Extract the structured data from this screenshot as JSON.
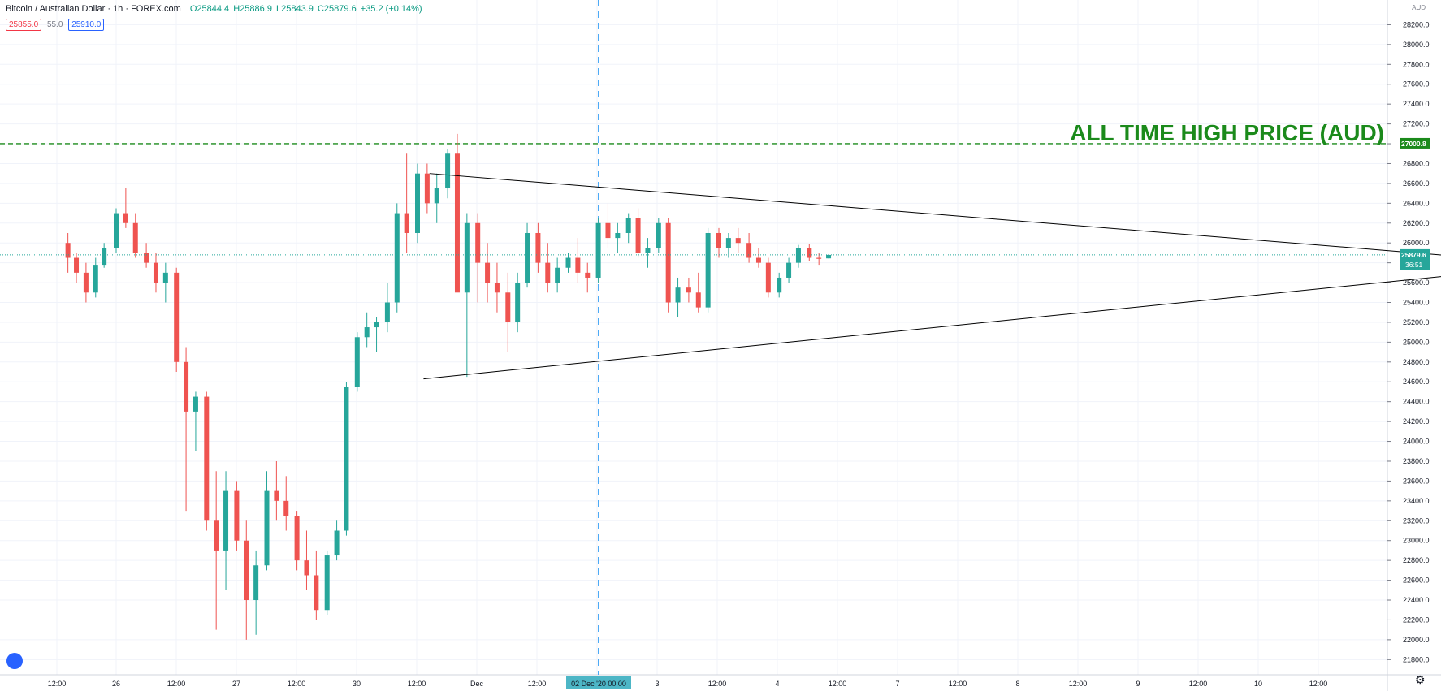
{
  "header": {
    "symbol": "Bitcoin / Australian Dollar · 1h · FOREX.com",
    "open": "O25844.4",
    "high": "H25886.9",
    "low": "L25843.9",
    "close": "C25879.6",
    "change": "+35.2 (+0.14%)",
    "bid": "25855.0",
    "spread": "55.0",
    "ask": "25910.0"
  },
  "axis": {
    "currency": "AUD",
    "price_ticks": [
      "28200.0",
      "28000.0",
      "27800.0",
      "27600.0",
      "27400.0",
      "27200.0",
      "27000.0",
      "26800.0",
      "26600.0",
      "26400.0",
      "26200.0",
      "26000.0",
      "25800.0",
      "25600.0",
      "25400.0",
      "25200.0",
      "25000.0",
      "24800.0",
      "24600.0",
      "24400.0",
      "24200.0",
      "24000.0",
      "23800.0",
      "23600.0",
      "23400.0",
      "23200.0",
      "23000.0",
      "22800.0",
      "22600.0",
      "22400.0",
      "22200.0",
      "22000.0",
      "21800.0"
    ],
    "time_ticks": [
      "12:00",
      "26",
      "12:00",
      "27",
      "12:00",
      "30",
      "12:00",
      "Dec",
      "12:00",
      "12:00",
      "3",
      "12:00",
      "4",
      "12:00",
      "7",
      "12:00",
      "8",
      "12:00",
      "9",
      "12:00",
      "10",
      "12:00"
    ],
    "crosshair_label": "02 Dec '20   00:00",
    "ath_label": "27000.8",
    "last_price_label": "25879.6",
    "countdown_label": "36:51"
  },
  "annotation": {
    "ath_text": "ALL TIME HIGH PRICE (AUD)"
  },
  "colors": {
    "up": "#26a69a",
    "down": "#ef5350",
    "ath": "#1b8a1b",
    "crosshair": "#2196f3",
    "grid": "#f0f3fa",
    "trendline": "#000000"
  },
  "chart_data": {
    "type": "candlestick",
    "y_unit": "AUD",
    "ylim": [
      21700,
      28400
    ],
    "ath_price": 27000.8,
    "last_price": 25879.6,
    "triangle": {
      "upper": [
        [
          2.6,
          26700
        ],
        [
          11.8,
          25800
        ]
      ],
      "lower": [
        [
          2.55,
          24630
        ],
        [
          11.8,
          25760
        ]
      ]
    },
    "crosshair_x": 3.0,
    "grid": true,
    "candles_approx": [
      [
        -0.4,
        26000,
        26100,
        25700,
        25850
      ],
      [
        -0.33,
        25850,
        25900,
        25600,
        25700
      ],
      [
        -0.25,
        25700,
        25800,
        25400,
        25500
      ],
      [
        -0.17,
        25500,
        25850,
        25450,
        25780
      ],
      [
        -0.1,
        25780,
        26000,
        25750,
        25950
      ],
      [
        0.0,
        25950,
        26350,
        25900,
        26300
      ],
      [
        0.08,
        26300,
        26550,
        26150,
        26200
      ],
      [
        0.16,
        26200,
        26300,
        25850,
        25900
      ],
      [
        0.25,
        25900,
        26000,
        25750,
        25800
      ],
      [
        0.33,
        25800,
        25900,
        25500,
        25600
      ],
      [
        0.41,
        25600,
        25800,
        25400,
        25700
      ],
      [
        0.5,
        25700,
        25750,
        24700,
        24800
      ],
      [
        0.58,
        24800,
        24950,
        23300,
        24300
      ],
      [
        0.66,
        24300,
        24500,
        23900,
        24450
      ],
      [
        0.75,
        24450,
        24500,
        23100,
        23200
      ],
      [
        0.83,
        23200,
        23700,
        22100,
        22900
      ],
      [
        0.91,
        22900,
        23700,
        22500,
        23500
      ],
      [
        1.0,
        23500,
        23600,
        22900,
        23000
      ],
      [
        1.08,
        23000,
        23200,
        22000,
        22400
      ],
      [
        1.16,
        22400,
        22900,
        22050,
        22750
      ],
      [
        1.25,
        22750,
        23700,
        22700,
        23500
      ],
      [
        1.33,
        23500,
        23800,
        23200,
        23400
      ],
      [
        1.41,
        23400,
        23650,
        23100,
        23250
      ],
      [
        1.5,
        23250,
        23300,
        22700,
        22800
      ],
      [
        1.58,
        22800,
        23100,
        22500,
        22650
      ],
      [
        1.66,
        22650,
        22900,
        22200,
        22300
      ],
      [
        1.75,
        22300,
        22900,
        22250,
        22850
      ],
      [
        1.83,
        22850,
        23200,
        22800,
        23100
      ],
      [
        1.91,
        23100,
        24600,
        23050,
        24550
      ],
      [
        2.0,
        24550,
        25100,
        24500,
        25050
      ],
      [
        2.08,
        25050,
        25300,
        24950,
        25150
      ],
      [
        2.16,
        25150,
        25250,
        24900,
        25200
      ],
      [
        2.25,
        25200,
        25600,
        25100,
        25400
      ],
      [
        2.33,
        25400,
        26400,
        25300,
        26300
      ],
      [
        2.41,
        26300,
        26900,
        25900,
        26100
      ],
      [
        2.5,
        26100,
        26800,
        26000,
        26700
      ],
      [
        2.58,
        26700,
        26800,
        26300,
        26400
      ],
      [
        2.66,
        26400,
        26700,
        26200,
        26550
      ],
      [
        2.75,
        26550,
        26950,
        26450,
        26900
      ],
      [
        2.83,
        26900,
        27100,
        25600,
        25500
      ],
      [
        2.91,
        25500,
        26300,
        24650,
        26200
      ],
      [
        3.0,
        26200,
        26300,
        25400,
        25800
      ],
      [
        3.08,
        25800,
        26000,
        25400,
        25600
      ],
      [
        3.16,
        25600,
        25800,
        25300,
        25500
      ],
      [
        3.25,
        25500,
        25700,
        24900,
        25200
      ],
      [
        3.33,
        25200,
        25700,
        25100,
        25600
      ],
      [
        3.41,
        25600,
        26200,
        25550,
        26100
      ],
      [
        3.5,
        26100,
        26200,
        25700,
        25800
      ],
      [
        3.58,
        25800,
        26000,
        25500,
        25600
      ],
      [
        3.66,
        25600,
        25850,
        25500,
        25750
      ],
      [
        3.75,
        25750,
        25900,
        25700,
        25850
      ],
      [
        3.83,
        25850,
        26050,
        25600,
        25700
      ],
      [
        3.91,
        25700,
        25800,
        25500,
        25650
      ],
      [
        4.0,
        25650,
        26250,
        25600,
        26200
      ],
      [
        4.08,
        26200,
        26400,
        25950,
        26050
      ],
      [
        4.16,
        26050,
        26200,
        25900,
        26100
      ],
      [
        4.25,
        26100,
        26300,
        26000,
        26250
      ],
      [
        4.33,
        26250,
        26350,
        25850,
        25900
      ],
      [
        4.41,
        25900,
        26050,
        25750,
        25950
      ],
      [
        4.5,
        25950,
        26250,
        25900,
        26200
      ],
      [
        4.58,
        26200,
        26250,
        25300,
        25400
      ],
      [
        4.66,
        25400,
        25650,
        25250,
        25550
      ],
      [
        4.75,
        25550,
        25650,
        25400,
        25500
      ],
      [
        4.83,
        25500,
        25700,
        25300,
        25350
      ],
      [
        4.91,
        25350,
        26150,
        25300,
        26100
      ],
      [
        5.0,
        26100,
        26150,
        25850,
        25950
      ],
      [
        5.08,
        25950,
        26100,
        25850,
        26050
      ],
      [
        5.16,
        26050,
        26150,
        25900,
        26000
      ],
      [
        5.25,
        26000,
        26100,
        25800,
        25850
      ],
      [
        5.33,
        25850,
        25950,
        25750,
        25800
      ],
      [
        5.41,
        25800,
        25850,
        25450,
        25500
      ],
      [
        5.5,
        25500,
        25700,
        25450,
        25650
      ],
      [
        5.58,
        25650,
        25850,
        25600,
        25800
      ],
      [
        5.66,
        25800,
        25980,
        25750,
        25950
      ],
      [
        5.75,
        25950,
        25990,
        25820,
        25850
      ],
      [
        5.83,
        25850,
        25900,
        25780,
        25840
      ],
      [
        5.91,
        25844.4,
        25886.9,
        25843.9,
        25879.6
      ]
    ]
  }
}
